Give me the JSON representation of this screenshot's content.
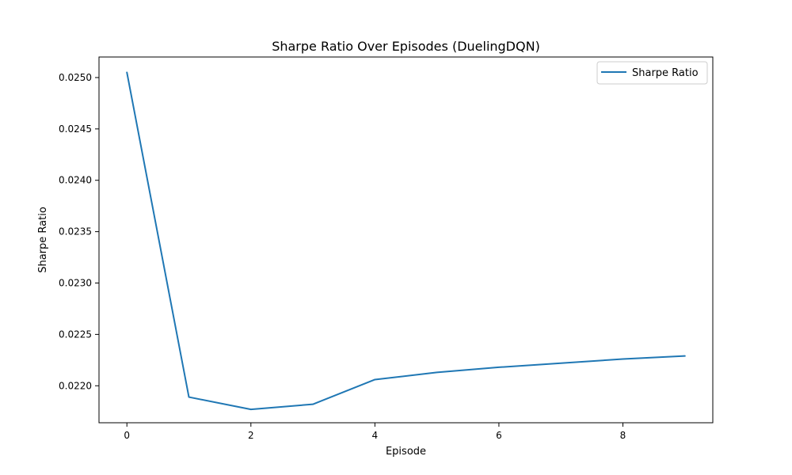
{
  "chart_data": {
    "type": "line",
    "title": "Sharpe Ratio Over Episodes (DuelingDQN)",
    "xlabel": "Episode",
    "ylabel": "Sharpe Ratio",
    "xlim": [
      -0.45,
      9.45
    ],
    "ylim": [
      0.02164,
      0.0252
    ],
    "xticks": [
      0,
      2,
      4,
      6,
      8
    ],
    "xtick_labels": [
      "0",
      "2",
      "4",
      "6",
      "8"
    ],
    "yticks": [
      0.022,
      0.0225,
      0.023,
      0.0235,
      0.024,
      0.0245,
      0.025
    ],
    "ytick_labels": [
      "0.0220",
      "0.0225",
      "0.0230",
      "0.0235",
      "0.0240",
      "0.0245",
      "0.0250"
    ],
    "grid": false,
    "legend_position": "upper right",
    "series": [
      {
        "name": "Sharpe Ratio",
        "color": "#1f77b4",
        "x": [
          0,
          1,
          2,
          3,
          4,
          5,
          6,
          7,
          8,
          9
        ],
        "values": [
          0.02505,
          0.02189,
          0.02177,
          0.02182,
          0.02206,
          0.02213,
          0.02218,
          0.02222,
          0.02226,
          0.02229
        ]
      }
    ]
  }
}
